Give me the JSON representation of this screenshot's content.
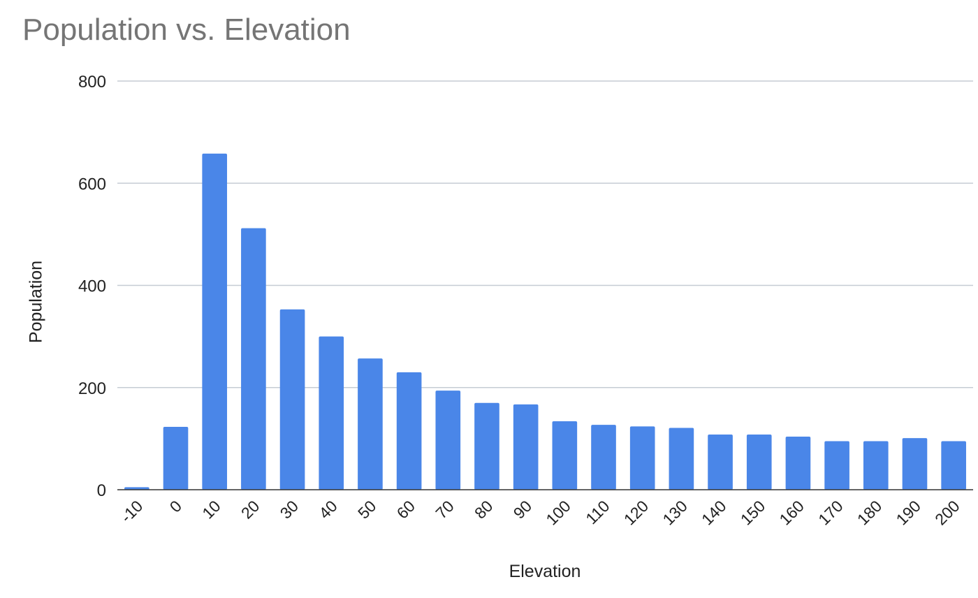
{
  "chart_data": {
    "type": "bar",
    "title": "Population vs. Elevation",
    "xlabel": "Elevation",
    "ylabel": "Population",
    "categories": [
      "-10",
      "0",
      "10",
      "20",
      "30",
      "40",
      "50",
      "60",
      "70",
      "80",
      "90",
      "100",
      "110",
      "120",
      "130",
      "140",
      "150",
      "160",
      "170",
      "180",
      "190",
      "200"
    ],
    "values": [
      5,
      123,
      658,
      512,
      353,
      300,
      257,
      230,
      194,
      170,
      167,
      134,
      127,
      124,
      121,
      108,
      108,
      104,
      95,
      95,
      101,
      95
    ],
    "ylim": [
      0,
      800
    ],
    "yticks": [
      0,
      200,
      400,
      600,
      800
    ],
    "grid": true,
    "legend": "none",
    "colors": {
      "bar": "#4a86e8",
      "gridline": "#c6ccd4",
      "title": "#757575"
    }
  }
}
